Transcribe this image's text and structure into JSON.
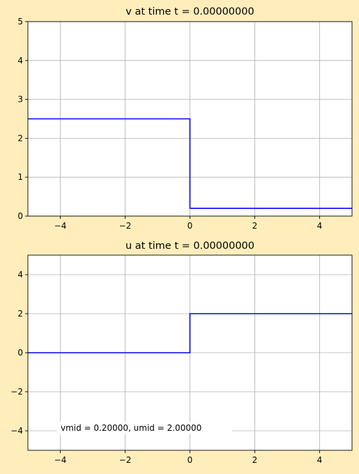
{
  "figure": {
    "background": "#ffeebb",
    "plot_background": "#ffffff"
  },
  "chart_data": [
    {
      "type": "line",
      "title": "v at time t =      0.00000000",
      "xlabel": "",
      "ylabel": "",
      "xlim": [
        -5,
        5
      ],
      "ylim": [
        0,
        5
      ],
      "xticks": [
        -4,
        -2,
        0,
        2,
        4
      ],
      "yticks": [
        0,
        1,
        2,
        3,
        4,
        5
      ],
      "grid": true,
      "series": [
        {
          "x": [
            -5,
            0,
            0,
            5
          ],
          "y": [
            2.5,
            2.5,
            0.2,
            0.2
          ],
          "color": "#0000ff"
        }
      ],
      "annotation": ""
    },
    {
      "type": "line",
      "title": "u at time t =      0.00000000",
      "xlabel": "",
      "ylabel": "",
      "xlim": [
        -5,
        5
      ],
      "ylim": [
        -5,
        5
      ],
      "xticks": [
        -4,
        -2,
        0,
        2,
        4
      ],
      "yticks": [
        -4,
        -2,
        0,
        2,
        4
      ],
      "grid": true,
      "series": [
        {
          "x": [
            -5,
            0,
            0,
            5
          ],
          "y": [
            0,
            0,
            2,
            2
          ],
          "color": "#0000ff"
        }
      ],
      "annotation": "vmid = 0.20000, umid = 2.00000"
    }
  ]
}
